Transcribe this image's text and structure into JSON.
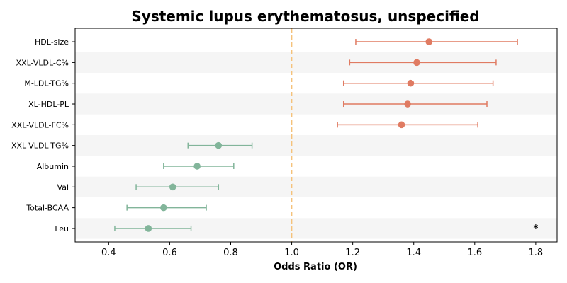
{
  "chart_data": {
    "type": "forest",
    "title": "Systemic lupus erythematosus, unspecified",
    "xlabel": "Odds Ratio (OR)",
    "ylabel": "",
    "xlim": [
      0.29,
      1.87
    ],
    "xticks": [
      "0.4",
      "0.6",
      "0.8",
      "1.0",
      "1.2",
      "1.4",
      "1.6",
      "1.8"
    ],
    "reference_line": 1.0,
    "grid": false,
    "colors": {
      "positive": "#e07b62",
      "negative": "#82b59a",
      "reference": "#f5c27a",
      "band": "#f5f5f5"
    },
    "rows": [
      {
        "label": "HDL-size",
        "or": 1.45,
        "lo": 1.21,
        "hi": 1.74
      },
      {
        "label": "XXL-VLDL-C%",
        "or": 1.41,
        "lo": 1.19,
        "hi": 1.67
      },
      {
        "label": "M-LDL-TG%",
        "or": 1.39,
        "lo": 1.17,
        "hi": 1.66
      },
      {
        "label": "XL-HDL-PL",
        "or": 1.38,
        "lo": 1.17,
        "hi": 1.64
      },
      {
        "label": "XXL-VLDL-FC%",
        "or": 1.36,
        "lo": 1.15,
        "hi": 1.61
      },
      {
        "label": "XXL-VLDL-TG%",
        "or": 0.76,
        "lo": 0.66,
        "hi": 0.87
      },
      {
        "label": "Albumin",
        "or": 0.69,
        "lo": 0.58,
        "hi": 0.81
      },
      {
        "label": "Val",
        "or": 0.61,
        "lo": 0.49,
        "hi": 0.76
      },
      {
        "label": "Total-BCAA",
        "or": 0.58,
        "lo": 0.46,
        "hi": 0.72
      },
      {
        "label": "Leu",
        "or": 0.53,
        "lo": 0.42,
        "hi": 0.67
      }
    ],
    "annotations": [
      {
        "text": "*",
        "row": "Leu",
        "x": 1.8
      }
    ]
  }
}
